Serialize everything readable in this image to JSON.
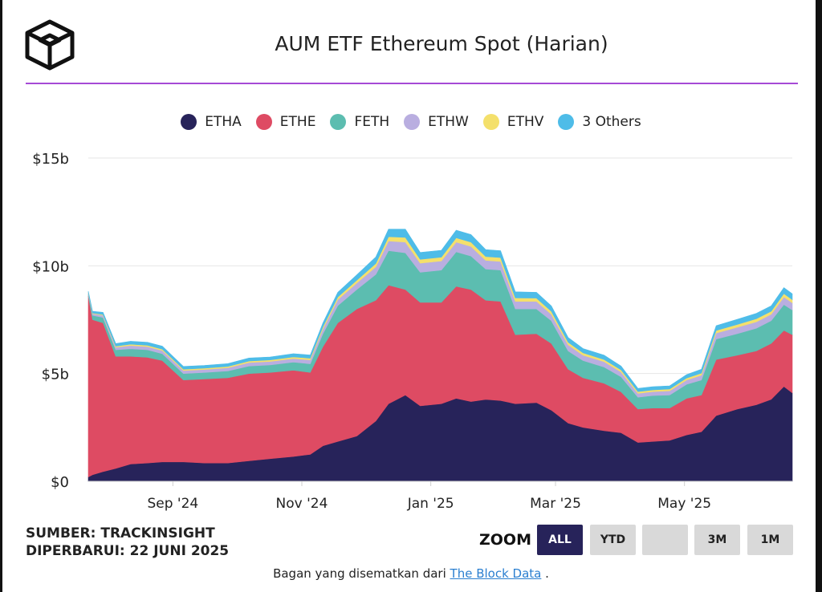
{
  "title": "AUM ETF Ethereum Spot (Harian)",
  "logo_icon": "cube-logo-icon",
  "colors": {
    "accent_rule": "#a64ad6",
    "ETHA": "#27235a",
    "ETHE": "#de4b63",
    "FETH": "#5cbdb0",
    "ETHW": "#b9aee0",
    "ETHV": "#f4e06b",
    "others": "#4ebce8"
  },
  "source": "SUMBER: TRACKINSIGHT",
  "updated": "DIPERBARUI: 22 JUNI 2025",
  "zoom": {
    "label": "ZOOM",
    "buttons": [
      {
        "label": "ALL",
        "active": true
      },
      {
        "label": "YTD",
        "active": false
      },
      {
        "label": "",
        "active": false
      },
      {
        "label": "3M",
        "active": false
      },
      {
        "label": "1M",
        "active": false
      }
    ]
  },
  "embed": {
    "prefix": "Bagan yang disematkan dari",
    "link": "The Block Data",
    "suffix": "."
  },
  "chart_data": {
    "type": "area",
    "stacked": true,
    "grid": true,
    "legend_position": "top",
    "ylim": [
      0,
      15
    ],
    "y_ticks": [
      {
        "value": 0,
        "label": "$0"
      },
      {
        "value": 5,
        "label": "$5b"
      },
      {
        "value": 10,
        "label": "$10b"
      },
      {
        "value": 15,
        "label": "$15b"
      }
    ],
    "x_ticks": [
      {
        "date": "2024-09-01",
        "label": "Sep '24"
      },
      {
        "date": "2024-11-01",
        "label": "Nov '24"
      },
      {
        "date": "2025-01-01",
        "label": "Jan '25"
      },
      {
        "date": "2025-03-01",
        "label": "Mar '25"
      },
      {
        "date": "2025-05-01",
        "label": "May '25"
      }
    ],
    "x": [
      "2024-07-23",
      "2024-07-25",
      "2024-07-30",
      "2024-08-05",
      "2024-08-12",
      "2024-08-20",
      "2024-08-27",
      "2024-09-06",
      "2024-09-16",
      "2024-09-27",
      "2024-10-07",
      "2024-10-17",
      "2024-10-28",
      "2024-11-05",
      "2024-11-11",
      "2024-11-18",
      "2024-11-27",
      "2024-12-06",
      "2024-12-12",
      "2024-12-20",
      "2024-12-27",
      "2025-01-06",
      "2025-01-13",
      "2025-01-20",
      "2025-01-27",
      "2025-02-03",
      "2025-02-10",
      "2025-02-20",
      "2025-02-27",
      "2025-03-07",
      "2025-03-14",
      "2025-03-24",
      "2025-04-01",
      "2025-04-09",
      "2025-04-16",
      "2025-04-24",
      "2025-05-02",
      "2025-05-09",
      "2025-05-16",
      "2025-05-26",
      "2025-06-04",
      "2025-06-11",
      "2025-06-17",
      "2025-06-21"
    ],
    "series": [
      {
        "name": "ETHA",
        "values": [
          0.2,
          0.3,
          0.45,
          0.6,
          0.8,
          0.85,
          0.9,
          0.9,
          0.85,
          0.85,
          0.95,
          1.05,
          1.15,
          1.25,
          1.65,
          1.85,
          2.1,
          2.8,
          3.6,
          4.0,
          3.5,
          3.6,
          3.85,
          3.7,
          3.8,
          3.75,
          3.6,
          3.65,
          3.3,
          2.7,
          2.5,
          2.35,
          2.25,
          1.8,
          1.85,
          1.9,
          2.15,
          2.3,
          3.05,
          3.35,
          3.55,
          3.8,
          4.4,
          4.1
        ]
      },
      {
        "name": "ETHE",
        "values": [
          8.4,
          7.2,
          6.9,
          5.2,
          5.0,
          4.9,
          4.7,
          3.8,
          3.9,
          3.95,
          4.05,
          4.0,
          4.0,
          3.8,
          4.6,
          5.5,
          5.9,
          5.6,
          5.5,
          4.9,
          4.8,
          4.7,
          5.2,
          5.2,
          4.6,
          4.6,
          3.2,
          3.2,
          3.1,
          2.5,
          2.3,
          2.2,
          1.9,
          1.55,
          1.55,
          1.5,
          1.7,
          1.7,
          2.6,
          2.5,
          2.5,
          2.6,
          2.6,
          2.7
        ]
      },
      {
        "name": "FETH",
        "values": [
          0.1,
          0.2,
          0.25,
          0.3,
          0.35,
          0.35,
          0.32,
          0.3,
          0.3,
          0.32,
          0.35,
          0.35,
          0.38,
          0.4,
          0.6,
          0.8,
          0.9,
          1.2,
          1.6,
          1.7,
          1.4,
          1.5,
          1.6,
          1.55,
          1.45,
          1.45,
          1.2,
          1.15,
          1.05,
          0.85,
          0.8,
          0.75,
          0.7,
          0.55,
          0.58,
          0.6,
          0.65,
          0.7,
          0.95,
          1.0,
          1.05,
          1.05,
          1.2,
          1.15
        ]
      },
      {
        "name": "ETHW",
        "values": [
          0.05,
          0.08,
          0.1,
          0.12,
          0.15,
          0.15,
          0.15,
          0.14,
          0.14,
          0.15,
          0.16,
          0.16,
          0.17,
          0.18,
          0.22,
          0.28,
          0.3,
          0.35,
          0.45,
          0.5,
          0.42,
          0.42,
          0.45,
          0.45,
          0.4,
          0.4,
          0.35,
          0.35,
          0.3,
          0.28,
          0.25,
          0.25,
          0.22,
          0.18,
          0.18,
          0.2,
          0.2,
          0.22,
          0.28,
          0.3,
          0.3,
          0.3,
          0.35,
          0.33
        ]
      },
      {
        "name": "ETHV",
        "values": [
          0.02,
          0.03,
          0.04,
          0.05,
          0.06,
          0.06,
          0.06,
          0.06,
          0.06,
          0.06,
          0.07,
          0.07,
          0.07,
          0.08,
          0.1,
          0.12,
          0.13,
          0.16,
          0.2,
          0.22,
          0.18,
          0.18,
          0.2,
          0.2,
          0.18,
          0.18,
          0.16,
          0.15,
          0.14,
          0.12,
          0.11,
          0.1,
          0.1,
          0.08,
          0.08,
          0.08,
          0.09,
          0.1,
          0.12,
          0.13,
          0.14,
          0.14,
          0.16,
          0.15
        ]
      },
      {
        "name": "3 Others",
        "values": [
          0.05,
          0.08,
          0.1,
          0.12,
          0.14,
          0.14,
          0.14,
          0.13,
          0.13,
          0.13,
          0.14,
          0.14,
          0.15,
          0.15,
          0.18,
          0.22,
          0.25,
          0.3,
          0.35,
          0.38,
          0.32,
          0.32,
          0.35,
          0.35,
          0.32,
          0.32,
          0.28,
          0.27,
          0.25,
          0.22,
          0.2,
          0.2,
          0.18,
          0.15,
          0.15,
          0.15,
          0.16,
          0.18,
          0.22,
          0.24,
          0.25,
          0.25,
          0.28,
          0.27
        ]
      }
    ]
  }
}
